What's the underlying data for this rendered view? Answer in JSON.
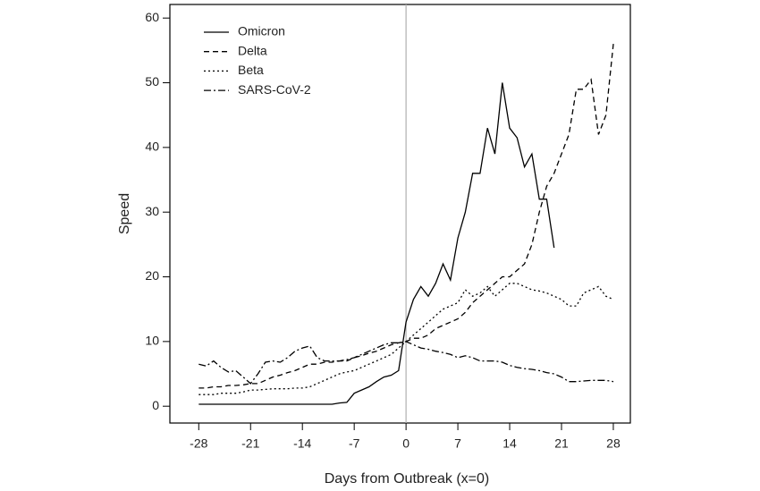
{
  "chart_data": {
    "type": "line",
    "x_label": "Days from Outbreak (x=0)",
    "y_label": "Speed",
    "x": [
      -28,
      -27,
      -26,
      -25,
      -24,
      -23,
      -22,
      -21,
      -20,
      -19,
      -18,
      -17,
      -16,
      -15,
      -14,
      -13,
      -12,
      -11,
      -10,
      -9,
      -8,
      -7,
      -6,
      -5,
      -4,
      -3,
      -2,
      -1,
      0,
      1,
      2,
      3,
      4,
      5,
      6,
      7,
      8,
      9,
      10,
      11,
      12,
      13,
      14,
      15,
      16,
      17,
      18,
      19,
      20,
      21,
      22,
      23,
      24,
      25,
      26,
      27,
      28
    ],
    "series": [
      {
        "name": "Omicron",
        "color": "#000000",
        "dash": "solid",
        "values": [
          0.3,
          0.3,
          0.3,
          0.3,
          0.3,
          0.3,
          0.3,
          0.3,
          0.3,
          0.3,
          0.3,
          0.3,
          0.3,
          0.3,
          0.3,
          0.3,
          0.3,
          0.3,
          0.3,
          0.5,
          0.6,
          2,
          2.5,
          3,
          3.8,
          4.5,
          4.8,
          5.5,
          13,
          16.5,
          18.5,
          17,
          19,
          22,
          19.5,
          26,
          30,
          36,
          36,
          43,
          39,
          50,
          43,
          41.5,
          37,
          39,
          32,
          32,
          24.5,
          null,
          null,
          null,
          null,
          null,
          null,
          null,
          null
        ]
      },
      {
        "name": "Delta",
        "color": "#000000",
        "dash": "dashed",
        "values": [
          2.8,
          2.8,
          3,
          3,
          3.2,
          3.2,
          3.3,
          3.5,
          3.5,
          4,
          4.5,
          4.8,
          5.2,
          5.5,
          6,
          6.5,
          6.5,
          6.8,
          6.8,
          7,
          7,
          7.5,
          7.8,
          8.2,
          8.5,
          9,
          9.5,
          9.8,
          10,
          10.5,
          10.5,
          11,
          12,
          12.5,
          13,
          13.5,
          14.5,
          16,
          17,
          18,
          19,
          20,
          20,
          21,
          22,
          25,
          30,
          34,
          36,
          39,
          42,
          49,
          49,
          50.5,
          42,
          45,
          56
        ]
      },
      {
        "name": "Beta",
        "color": "#000000",
        "dash": "dotted",
        "values": [
          1.8,
          1.8,
          1.8,
          2,
          2,
          2,
          2.2,
          2.5,
          2.5,
          2.6,
          2.7,
          2.7,
          2.7,
          2.8,
          2.8,
          3,
          3.5,
          4,
          4.5,
          5,
          5.3,
          5.5,
          6,
          6.5,
          7,
          7.5,
          8,
          9,
          10,
          11,
          12,
          13,
          14,
          15,
          15.5,
          16,
          18,
          17,
          17.5,
          18.5,
          17,
          18,
          19,
          19,
          18.5,
          18,
          17.8,
          17.5,
          17,
          16.5,
          15.5,
          15.5,
          17.5,
          18,
          18.5,
          17,
          16.5
        ]
      },
      {
        "name": "SARS-CoV-2",
        "color": "#000000",
        "dash": "dashdot",
        "values": [
          6.5,
          6.2,
          7,
          6,
          5.3,
          5.5,
          4.5,
          3.5,
          5,
          6.8,
          7,
          6.8,
          7.5,
          8.5,
          9,
          9.3,
          7.5,
          7,
          7,
          7,
          7.2,
          7.5,
          8,
          8.5,
          9,
          9.5,
          9.8,
          9.8,
          10,
          9.5,
          9,
          8.8,
          8.5,
          8.3,
          8,
          7.5,
          7.8,
          7.5,
          7,
          7,
          7,
          6.8,
          6.3,
          6,
          5.8,
          5.7,
          5.5,
          5.2,
          5,
          4.5,
          3.8,
          3.8,
          3.9,
          4,
          4,
          4,
          3.8
        ]
      }
    ],
    "xlim": [
      -31.9,
      30.3
    ],
    "ylim": [
      -2.6,
      62.1
    ],
    "xticks": [
      -28,
      -21,
      -14,
      -7,
      0,
      7,
      14,
      21,
      28
    ],
    "yticks": [
      0,
      10,
      20,
      30,
      40,
      50,
      60
    ],
    "vline": 0,
    "vline_color": "#b0b0b0",
    "legend": "upper left",
    "grid": false
  }
}
